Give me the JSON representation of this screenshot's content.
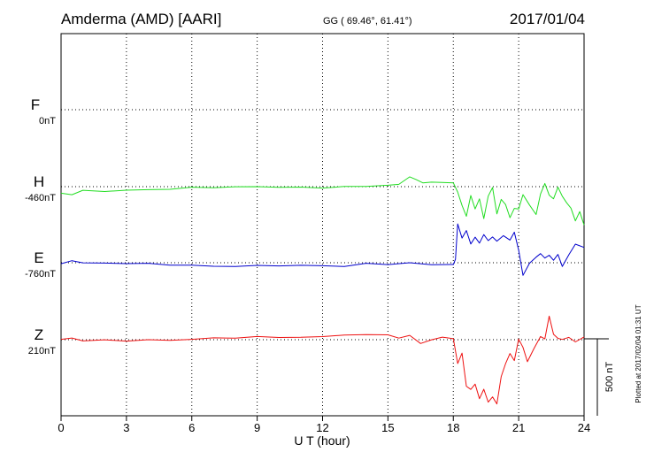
{
  "header": {
    "station": "Amderma (AMD)  [AARI]",
    "coords": "GG ( 69.46°,  61.41°)",
    "date": "2017/01/04"
  },
  "side_note": "Plotted at 2017/02/04 01:31  UT",
  "scale_label": "500 nT",
  "chart_data": {
    "type": "line",
    "title": "Amderma (AMD)  [AARI]",
    "xlabel": "U T (hour)",
    "xlim": [
      0,
      24
    ],
    "x_ticks": [
      0,
      3,
      6,
      9,
      12,
      15,
      18,
      21,
      24
    ],
    "x_tick_labels": [
      "0",
      "3",
      "6",
      "9",
      "12",
      "15",
      "18",
      "21",
      "24"
    ],
    "grid": true,
    "scale_nT": 500,
    "series": [
      {
        "name": "F",
        "baseline_label": "0nT",
        "color": "#f5a800",
        "x": [],
        "y": []
      },
      {
        "name": "H",
        "baseline_label": "-460nT",
        "color": "#22dd22",
        "x": [
          0,
          0.5,
          1,
          2,
          3,
          4,
          5,
          6,
          7,
          8,
          9,
          10,
          11,
          12,
          13,
          14,
          15,
          15.5,
          16,
          16.3,
          16.6,
          17,
          17.5,
          18,
          18.2,
          18.4,
          18.6,
          18.8,
          19.0,
          19.2,
          19.4,
          19.6,
          19.8,
          20.0,
          20.2,
          20.4,
          20.6,
          20.8,
          21.0,
          21.2,
          21.5,
          21.8,
          22.0,
          22.2,
          22.4,
          22.6,
          22.8,
          23.0,
          23.2,
          23.4,
          23.6,
          23.8,
          24
        ],
        "y": [
          -40,
          -50,
          -25,
          -22,
          -18,
          -15,
          -12,
          -10,
          -8,
          -10,
          -6,
          -5,
          -6,
          0,
          5,
          8,
          15,
          20,
          60,
          40,
          25,
          30,
          20,
          15,
          -40,
          -120,
          -190,
          -60,
          -150,
          -80,
          -200,
          -50,
          0,
          -180,
          -90,
          -120,
          -200,
          -140,
          -150,
          -60,
          -120,
          -170,
          -40,
          20,
          -60,
          -80,
          0,
          -60,
          -110,
          -150,
          -230,
          -160,
          -240
        ]
      },
      {
        "name": "E",
        "baseline_label": "-760nT",
        "color": "#0000cc",
        "x": [
          0,
          0.5,
          1,
          2,
          3,
          4,
          5,
          6,
          7,
          8,
          9,
          10,
          11,
          12,
          13,
          14,
          15,
          16,
          17,
          18,
          18.1,
          18.2,
          18.4,
          18.6,
          18.8,
          19.0,
          19.2,
          19.4,
          19.6,
          19.8,
          20.0,
          20.3,
          20.6,
          20.8,
          21.0,
          21.2,
          21.5,
          21.8,
          22.0,
          22.2,
          22.4,
          22.6,
          22.8,
          23.0,
          23.3,
          23.6,
          24
        ],
        "y": [
          0,
          10,
          -5,
          -8,
          -10,
          -14,
          -15,
          -18,
          -18,
          -16,
          -15,
          -12,
          -20,
          -22,
          -30,
          -14,
          -12,
          -5,
          -8,
          -5,
          20,
          250,
          150,
          200,
          120,
          170,
          130,
          180,
          140,
          170,
          150,
          170,
          140,
          190,
          80,
          -80,
          0,
          30,
          60,
          40,
          60,
          20,
          50,
          -30,
          50,
          120,
          90
        ]
      },
      {
        "name": "Z",
        "baseline_label": "210nT",
        "color": "#ee1111",
        "x": [
          0,
          0.5,
          1,
          2,
          3,
          4,
          5,
          6,
          7,
          8,
          9,
          10,
          11,
          12,
          13,
          14,
          15,
          15.5,
          16,
          16.5,
          17,
          17.5,
          18,
          18.2,
          18.4,
          18.6,
          18.8,
          19.0,
          19.2,
          19.4,
          19.6,
          19.8,
          20.0,
          20.2,
          20.4,
          20.6,
          20.8,
          21.0,
          21.2,
          21.4,
          21.7,
          22.0,
          22.2,
          22.4,
          22.6,
          22.8,
          23.0,
          23.3,
          23.6,
          24
        ],
        "y": [
          0,
          5,
          -5,
          0,
          2,
          3,
          1,
          4,
          5,
          8,
          10,
          12,
          15,
          20,
          40,
          35,
          40,
          10,
          30,
          -20,
          -5,
          10,
          5,
          -150,
          -80,
          -300,
          -330,
          -300,
          -390,
          -320,
          -400,
          -370,
          -420,
          -240,
          -150,
          -80,
          -130,
          0,
          -60,
          -150,
          -60,
          20,
          0,
          150,
          40,
          20,
          10,
          20,
          -20,
          20
        ]
      }
    ]
  }
}
